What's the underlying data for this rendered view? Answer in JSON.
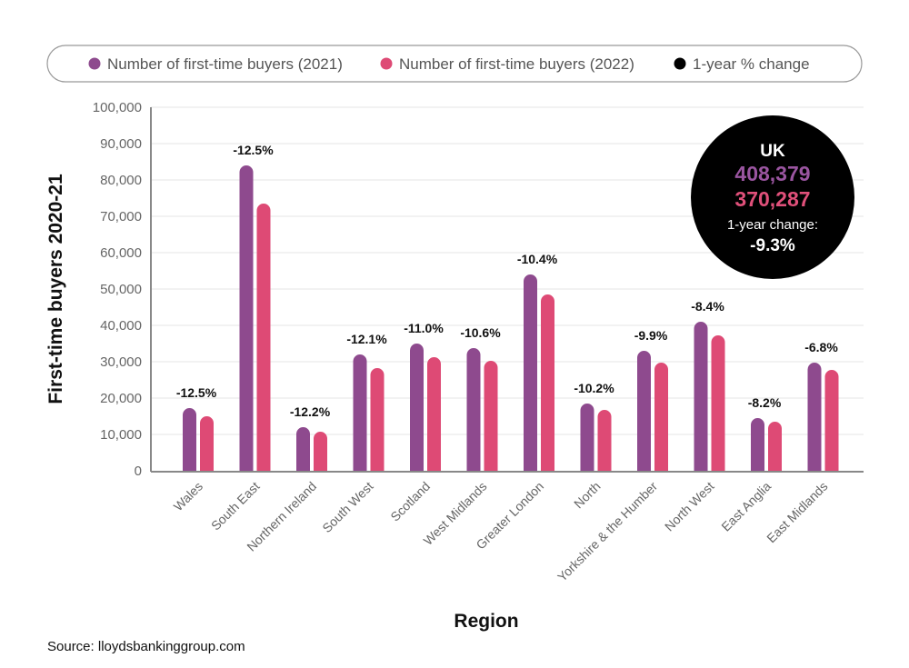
{
  "chart_data": {
    "type": "bar",
    "title": "",
    "xlabel": "Region",
    "ylabel": "First-time buyers 2020-21",
    "ylim": [
      0,
      100000
    ],
    "yticks": [
      "0",
      "10,000",
      "20,000",
      "30,000",
      "40,000",
      "50,000",
      "60,000",
      "70,000",
      "80,000",
      "90,000",
      "100,000"
    ],
    "grid": true,
    "legend_position": "top",
    "categories": [
      "Wales",
      "South East",
      "Northern Ireland",
      "South West",
      "Scotland",
      "West Midlands",
      "Greater London",
      "North",
      "Yorkshire & the Humber",
      "North West",
      "East Anglia",
      "East Midlands"
    ],
    "series": [
      {
        "name": "Number of first-time buyers (2021)",
        "color": "#8e4a8e",
        "values": [
          17250,
          84000,
          12000,
          32000,
          35000,
          33750,
          54000,
          18500,
          33000,
          41000,
          14500,
          29750
        ]
      },
      {
        "name": "Number of first-time buyers (2022)",
        "color": "#de4a75",
        "values": [
          15000,
          73500,
          10750,
          28250,
          31250,
          30250,
          48500,
          16750,
          29750,
          37250,
          13500,
          27750
        ]
      }
    ],
    "change_legend": {
      "name": "1-year % change",
      "color": "#000000"
    },
    "change_labels": [
      "-12.5%",
      "-12.5%",
      "-12.2%",
      "-12.1%",
      "-11.0%",
      "-10.6%",
      "-10.4%",
      "-10.2%",
      "-9.9%",
      "-8.4%",
      "-8.2%",
      "-6.8%"
    ],
    "uk_summary": {
      "label": "UK",
      "value_2021": "408,379",
      "value_2022": "370,287",
      "change_label": "1-year change:",
      "change": "-9.3%"
    },
    "source": "Source: lloydsbankinggroup.com"
  }
}
